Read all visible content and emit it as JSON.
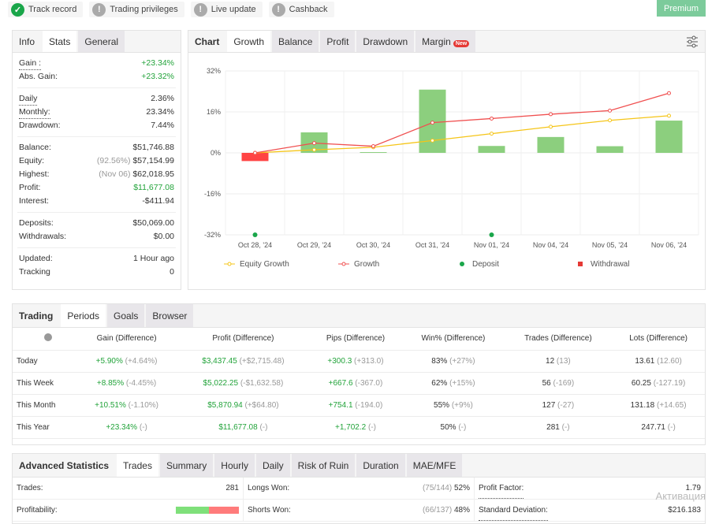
{
  "badges": [
    {
      "label": "Track record",
      "status": "ok"
    },
    {
      "label": "Trading privileges",
      "status": "warn"
    },
    {
      "label": "Live update",
      "status": "warn"
    },
    {
      "label": "Cashback",
      "status": "warn"
    }
  ],
  "premium": "Premium",
  "info": {
    "tabs": [
      "Info",
      "Stats",
      "General"
    ],
    "groups": [
      [
        {
          "label": "Gain :",
          "value": "+23.34%",
          "green": true,
          "dotted": true
        },
        {
          "label": "Abs. Gain:",
          "value": "+23.32%",
          "green": true
        }
      ],
      [
        {
          "label": "Daily",
          "value": "2.36%",
          "dotted": true
        },
        {
          "label": "Monthly:",
          "value": "23.34%",
          "dotted": true
        },
        {
          "label": "Drawdown:",
          "value": "7.44%"
        }
      ],
      [
        {
          "label": "Balance:",
          "value": "$51,746.88"
        },
        {
          "label": "Equity:",
          "note": "(92.56%)",
          "value": "$57,154.99"
        },
        {
          "label": "Highest:",
          "note": "(Nov 06)",
          "value": "$62,018.95"
        },
        {
          "label": "Profit:",
          "value": "$11,677.08",
          "green": true
        },
        {
          "label": "Interest:",
          "value": "-$411.94"
        }
      ],
      [
        {
          "label": "Deposits:",
          "value": "$50,069.00"
        },
        {
          "label": "Withdrawals:",
          "value": "$0.00"
        }
      ],
      [
        {
          "label": "Updated:",
          "value": "1 Hour ago"
        },
        {
          "label": "Tracking",
          "value": "0"
        }
      ]
    ]
  },
  "chart_tabs": {
    "title": "Chart",
    "items": [
      "Growth",
      "Balance",
      "Profit",
      "Drawdown",
      "Margin"
    ],
    "new_badge": "New"
  },
  "chart_data": {
    "type": "bar+line",
    "categories": [
      "Oct 28, '24",
      "Oct 29, '24",
      "Oct 30, '24",
      "Oct 31, '24",
      "Nov 01, '24",
      "Nov 04, '24",
      "Nov 05, '24",
      "Nov 06, '24"
    ],
    "ylim": [
      -32,
      32
    ],
    "yticks": [
      "32%",
      "16%",
      "0%",
      "-16%",
      "-32%"
    ],
    "ytick_values": [
      32,
      16,
      0,
      -16,
      -32
    ],
    "bars": [
      -3.2,
      8.0,
      0.3,
      24.7,
      2.7,
      6.2,
      2.6,
      12.6
    ],
    "series": [
      {
        "name": "Equity Growth",
        "color": "#f5c518",
        "values": [
          0,
          1.2,
          2.2,
          4.8,
          7.5,
          10.2,
          12.7,
          14.5
        ]
      },
      {
        "name": "Growth",
        "color": "#f05050",
        "values": [
          0,
          3.8,
          2.6,
          11.8,
          13.4,
          15.1,
          16.5,
          23.3
        ]
      }
    ],
    "deposits": [
      0,
      4
    ],
    "legend": [
      {
        "name": "Equity Growth",
        "color": "#f5c518"
      },
      {
        "name": "Growth",
        "color": "#f05050"
      },
      {
        "name": "Deposit",
        "color": "#1aa64a"
      },
      {
        "name": "Withdrawal",
        "color": "#e53935"
      }
    ],
    "colors": {
      "positive": "#8ccf7e",
      "negative": "#f44"
    }
  },
  "trading": {
    "tabs": [
      "Trading",
      "Periods",
      "Goals",
      "Browser"
    ],
    "headers": [
      "Gain (Difference)",
      "Profit (Difference)",
      "Pips (Difference)",
      "Win% (Difference)",
      "Trades (Difference)",
      "Lots (Difference)"
    ],
    "rows": [
      {
        "period": "Today",
        "cells": [
          [
            "+5.90%",
            "(+4.64%)"
          ],
          [
            "$3,437.45",
            "(+$2,715.48)"
          ],
          [
            "+300.3",
            "(+313.0)"
          ],
          [
            "83%",
            "(+27%)"
          ],
          [
            "12",
            "(13)"
          ],
          [
            "13.61",
            "(12.60)"
          ]
        ]
      },
      {
        "period": "This Week",
        "cells": [
          [
            "+8.85%",
            "(-4.45%)"
          ],
          [
            "$5,022.25",
            "(-$1,632.58)"
          ],
          [
            "+667.6",
            "(-367.0)"
          ],
          [
            "62%",
            "(+15%)"
          ],
          [
            "56",
            "(-169)"
          ],
          [
            "60.25",
            "(-127.19)"
          ]
        ]
      },
      {
        "period": "This Month",
        "cells": [
          [
            "+10.51%",
            "(-1.10%)"
          ],
          [
            "$5,870.94",
            "(+$64.80)"
          ],
          [
            "+754.1",
            "(-194.0)"
          ],
          [
            "55%",
            "(+9%)"
          ],
          [
            "127",
            "(-27)"
          ],
          [
            "131.18",
            "(+14.65)"
          ]
        ]
      },
      {
        "period": "This Year",
        "cells": [
          [
            "+23.34%",
            "(-)"
          ],
          [
            "$11,677.08",
            "(-)"
          ],
          [
            "+1,702.2",
            "(-)"
          ],
          [
            "50%",
            "(-)"
          ],
          [
            "281",
            "(-)"
          ],
          [
            "247.71",
            "(-)"
          ]
        ]
      }
    ]
  },
  "advanced": {
    "tabs": [
      "Advanced Statistics",
      "Trades",
      "Summary",
      "Hourly",
      "Daily",
      "Risk of Ruin",
      "Duration",
      "MAE/MFE"
    ],
    "trades_label": "Trades:",
    "trades_value": "281",
    "profitability_label": "Profitability:",
    "profitability_win_pct": 52,
    "longs_label": "Longs Won:",
    "longs_note": "(75/144)",
    "longs_value": "52%",
    "shorts_label": "Shorts Won:",
    "shorts_note": "(66/137)",
    "shorts_value": "48%",
    "pf_label": "Profit Factor:",
    "pf_value": "1.79",
    "sd_label": "Standard Deviation:",
    "sd_value": "$216.183"
  },
  "watermark": "Активация"
}
